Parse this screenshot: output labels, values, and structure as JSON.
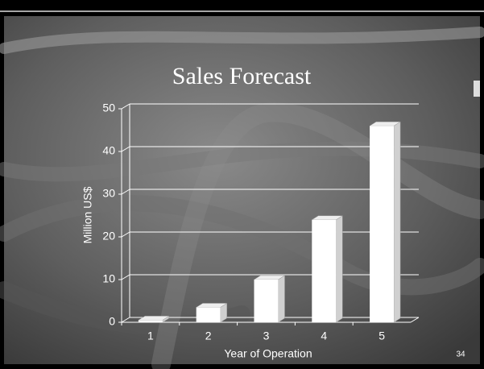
{
  "slide": {
    "title": "Sales Forecast",
    "slide_number": "34"
  },
  "chart_data": {
    "type": "bar3d",
    "ylabel": "Million US$",
    "xlabel": "Year of Operation",
    "categories": [
      "1",
      "2",
      "3",
      "4",
      "5"
    ],
    "values": [
      0.5,
      3.5,
      10,
      24,
      46
    ],
    "color": "#ffffff",
    "ylim": [
      0,
      50
    ],
    "yticks": [
      0,
      10,
      20,
      30,
      40,
      50
    ],
    "grid": true
  }
}
